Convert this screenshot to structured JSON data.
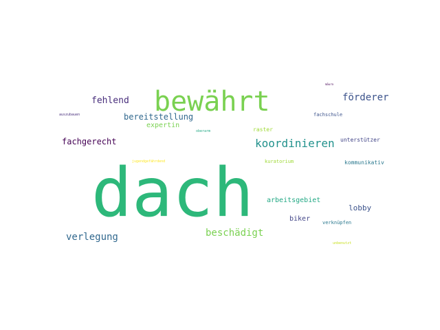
{
  "words": [
    {
      "id": "dach",
      "text": "dach",
      "color": "#2db87a"
    },
    {
      "id": "bewahrt",
      "text": "bewährt",
      "color": "#7ad151"
    },
    {
      "id": "koordinieren",
      "text": "koordinieren",
      "color": "#21918c"
    },
    {
      "id": "forderer",
      "text": "förderer",
      "color": "#3b528b"
    },
    {
      "id": "fehlend",
      "text": "fehlend",
      "color": "#472d7b"
    },
    {
      "id": "bereitstellung",
      "text": "bereitstellung",
      "color": "#31688e"
    },
    {
      "id": "fachgerecht",
      "text": "fachgerecht",
      "color": "#440154"
    },
    {
      "id": "verlegung",
      "text": "verlegung",
      "color": "#31688e"
    },
    {
      "id": "beschadigt",
      "text": "beschädigt",
      "color": "#7ad151"
    },
    {
      "id": "expertin",
      "text": "expertin",
      "color": "#7ad151"
    },
    {
      "id": "raster",
      "text": "raster",
      "color": "#a0da39"
    },
    {
      "id": "fachschule",
      "text": "fachschule",
      "color": "#3b528b"
    },
    {
      "id": "unterstutzer",
      "text": "unterstützer",
      "color": "#414487"
    },
    {
      "id": "kommunikativ",
      "text": "kommunikativ",
      "color": "#2a788e"
    },
    {
      "id": "kuratorium",
      "text": "kuratorium",
      "color": "#a0da39"
    },
    {
      "id": "arbeitsgebiet",
      "text": "arbeitsgebiet",
      "color": "#22a884"
    },
    {
      "id": "lobby",
      "text": "lobby",
      "color": "#3b528b"
    },
    {
      "id": "biker",
      "text": "biker",
      "color": "#414487"
    },
    {
      "id": "verknupfen",
      "text": "verknüpfen",
      "color": "#2a788e"
    },
    {
      "id": "jugendgefahrdend",
      "text": "jugendgefährdend",
      "color": "#fde725"
    },
    {
      "id": "oberarm",
      "text": "oberarm",
      "color": "#22a884"
    },
    {
      "id": "auszubauen",
      "text": "auszubauen",
      "color": "#472d7b"
    },
    {
      "id": "mauro",
      "text": "mäuro",
      "color": "#440154"
    },
    {
      "id": "unbenutzt",
      "text": "unbenutzt",
      "color": "#c8e020"
    }
  ]
}
